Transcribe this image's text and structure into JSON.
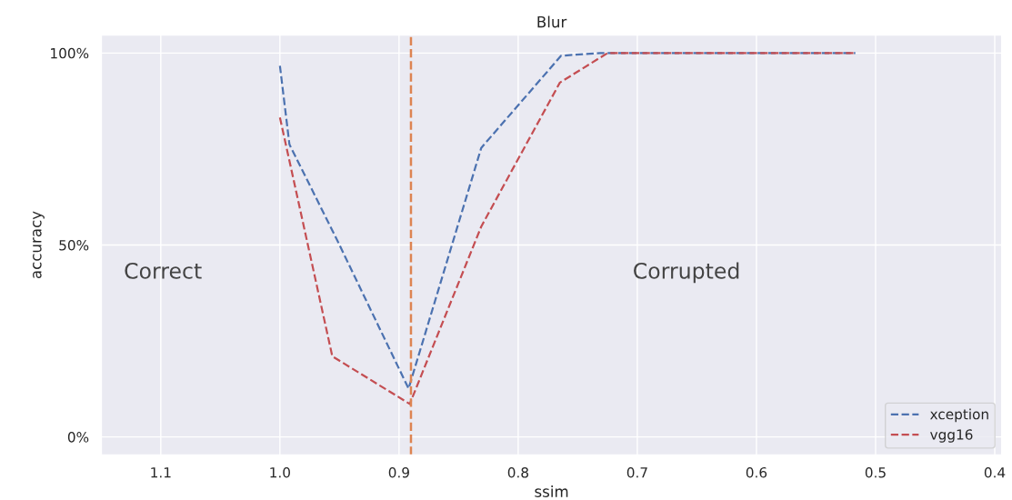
{
  "chart_data": {
    "type": "line",
    "title": "Blur",
    "xlabel": "ssim",
    "ylabel": "accuracy",
    "series": [
      {
        "name": "xception",
        "color": "#4c72b0",
        "x": [
          1.0,
          0.992,
          0.952,
          0.892,
          0.831,
          0.764,
          0.731,
          0.517
        ],
        "values": [
          96.7,
          76.2,
          51.3,
          12.6,
          75.3,
          99.3,
          100,
          100
        ]
      },
      {
        "name": "vgg16",
        "color": "#c44e52",
        "x": [
          1.0,
          0.956,
          0.891,
          0.831,
          0.765,
          0.725,
          0.517
        ],
        "values": [
          83.2,
          21,
          8.6,
          54.8,
          92.3,
          100,
          100
        ]
      }
    ],
    "line_style": "dashed",
    "marker": "none",
    "xlim": [
      1.15,
      0.394
    ],
    "xticks": [
      1.1,
      {
        "value": 1,
        "label": "1.0"
      },
      0.9,
      0.8,
      0.7,
      0.6,
      0.5,
      0.4
    ],
    "ylim": [
      -4.7,
      104.7
    ],
    "yticks": [
      {
        "value": 0,
        "label": "0%"
      },
      {
        "value": 50,
        "label": "50%"
      },
      {
        "value": 100,
        "label": "100%"
      }
    ],
    "ref_lines": [
      {
        "axis": "x",
        "value": 0.89,
        "color": "#dd8452",
        "line_style": "dashed"
      }
    ],
    "annotations": [
      "Correct",
      "Corrupted"
    ],
    "grid": true,
    "legend": "bottom right"
  }
}
